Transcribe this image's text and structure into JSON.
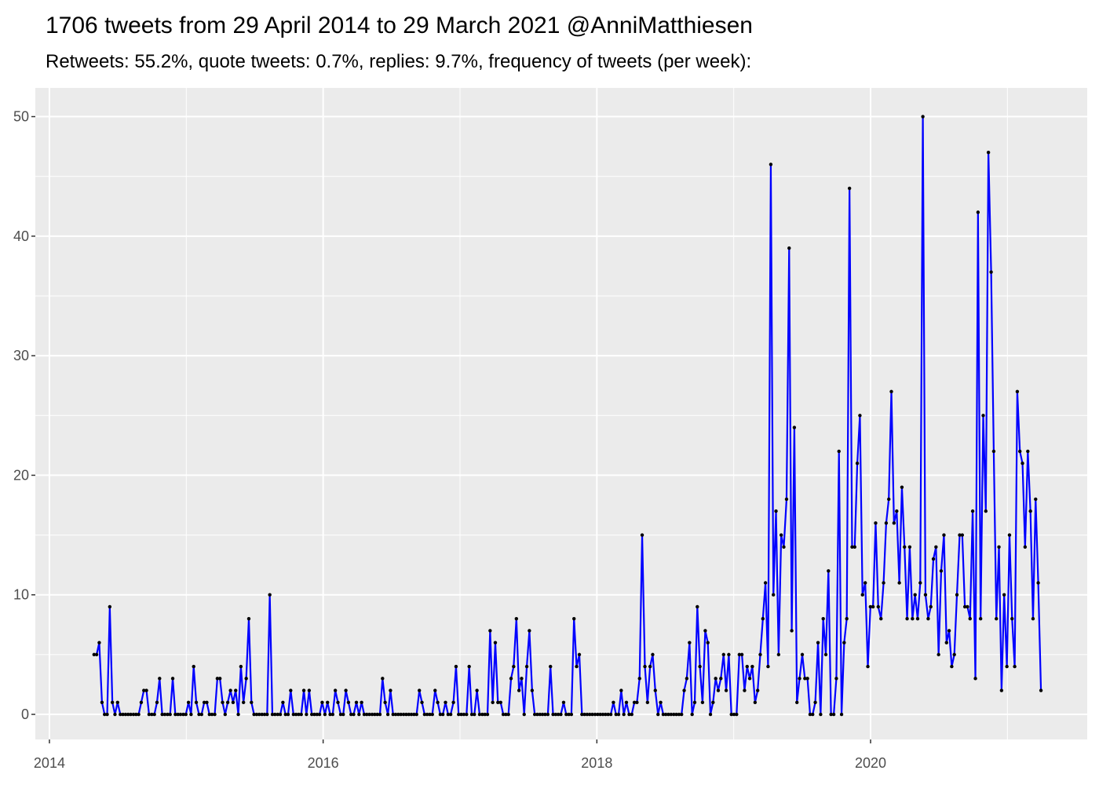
{
  "chart_data": {
    "type": "line",
    "title": "1706 tweets from 29 April 2014 to 29 March 2021 @AnniMatthiesen",
    "subtitle": "Retweets: 55.2%, quote tweets: 0.7%, replies: 9.7%, frequency of tweets (per week):",
    "x": [
      2014.326,
      2014.345,
      2014.364,
      2014.384,
      2014.403,
      2014.422,
      2014.441,
      2014.46,
      2014.479,
      2014.498,
      2014.518,
      2014.537,
      2014.556,
      2014.575,
      2014.594,
      2014.614,
      2014.633,
      2014.652,
      2014.671,
      2014.69,
      2014.709,
      2014.728,
      2014.748,
      2014.767,
      2014.786,
      2014.805,
      2014.824,
      2014.843,
      2014.863,
      2014.882,
      2014.901,
      2014.92,
      2014.939,
      2014.958,
      2014.978,
      2014.997,
      2015.016,
      2015.035,
      2015.054,
      2015.073,
      2015.093,
      2015.112,
      2015.131,
      2015.15,
      2015.169,
      2015.188,
      2015.208,
      2015.227,
      2015.246,
      2015.265,
      2015.284,
      2015.303,
      2015.323,
      2015.342,
      2015.361,
      2015.38,
      2015.399,
      2015.418,
      2015.438,
      2015.457,
      2015.476,
      2015.495,
      2015.514,
      2015.533,
      2015.553,
      2015.572,
      2015.591,
      2015.61,
      2015.629,
      2015.648,
      2015.668,
      2015.687,
      2015.706,
      2015.725,
      2015.744,
      2015.763,
      2015.783,
      2015.802,
      2015.821,
      2015.84,
      2015.859,
      2015.878,
      2015.898,
      2015.917,
      2015.936,
      2015.955,
      2015.974,
      2015.993,
      2016.013,
      2016.032,
      2016.051,
      2016.07,
      2016.089,
      2016.108,
      2016.128,
      2016.147,
      2016.166,
      2016.185,
      2016.204,
      2016.223,
      2016.243,
      2016.262,
      2016.281,
      2016.3,
      2016.319,
      2016.338,
      2016.358,
      2016.377,
      2016.396,
      2016.415,
      2016.434,
      2016.453,
      2016.473,
      2016.492,
      2016.511,
      2016.53,
      2016.549,
      2016.568,
      2016.588,
      2016.607,
      2016.626,
      2016.645,
      2016.664,
      2016.683,
      2016.703,
      2016.722,
      2016.741,
      2016.76,
      2016.779,
      2016.798,
      2016.818,
      2016.837,
      2016.856,
      2016.875,
      2016.894,
      2016.913,
      2016.932,
      2016.952,
      2016.971,
      2016.99,
      2017.009,
      2017.028,
      2017.048,
      2017.067,
      2017.086,
      2017.105,
      2017.124,
      2017.143,
      2017.163,
      2017.182,
      2017.201,
      2017.22,
      2017.239,
      2017.258,
      2017.277,
      2017.297,
      2017.316,
      2017.335,
      2017.354,
      2017.373,
      2017.392,
      2017.412,
      2017.431,
      2017.45,
      2017.469,
      2017.488,
      2017.507,
      2017.527,
      2017.546,
      2017.565,
      2017.584,
      2017.603,
      2017.622,
      2017.642,
      2017.661,
      2017.68,
      2017.699,
      2017.718,
      2017.737,
      2017.757,
      2017.776,
      2017.795,
      2017.814,
      2017.833,
      2017.852,
      2017.872,
      2017.891,
      2017.91,
      2017.929,
      2017.948,
      2017.967,
      2017.987,
      2018.006,
      2018.025,
      2018.044,
      2018.063,
      2018.082,
      2018.102,
      2018.121,
      2018.14,
      2018.159,
      2018.178,
      2018.197,
      2018.216,
      2018.236,
      2018.255,
      2018.274,
      2018.293,
      2018.312,
      2018.331,
      2018.351,
      2018.37,
      2018.389,
      2018.408,
      2018.427,
      2018.447,
      2018.466,
      2018.485,
      2018.504,
      2018.523,
      2018.542,
      2018.562,
      2018.581,
      2018.6,
      2018.619,
      2018.638,
      2018.657,
      2018.677,
      2018.696,
      2018.715,
      2018.734,
      2018.753,
      2018.772,
      2018.792,
      2018.811,
      2018.83,
      2018.849,
      2018.868,
      2018.887,
      2018.906,
      2018.926,
      2018.945,
      2018.964,
      2018.983,
      2019.002,
      2019.021,
      2019.041,
      2019.06,
      2019.079,
      2019.098,
      2019.117,
      2019.136,
      2019.156,
      2019.175,
      2019.194,
      2019.213,
      2019.232,
      2019.251,
      2019.271,
      2019.29,
      2019.309,
      2019.328,
      2019.347,
      2019.366,
      2019.386,
      2019.405,
      2019.424,
      2019.443,
      2019.462,
      2019.481,
      2019.501,
      2019.52,
      2019.539,
      2019.558,
      2019.577,
      2019.596,
      2019.616,
      2019.635,
      2019.654,
      2019.673,
      2019.692,
      2019.711,
      2019.731,
      2019.75,
      2019.769,
      2019.788,
      2019.807,
      2019.826,
      2019.846,
      2019.865,
      2019.884,
      2019.903,
      2019.922,
      2019.941,
      2019.961,
      2019.98,
      2019.999,
      2020.018,
      2020.037,
      2020.056,
      2020.076,
      2020.095,
      2020.114,
      2020.133,
      2020.152,
      2020.171,
      2020.191,
      2020.21,
      2020.229,
      2020.248,
      2020.267,
      2020.286,
      2020.306,
      2020.325,
      2020.344,
      2020.363,
      2020.382,
      2020.401,
      2020.421,
      2020.44,
      2020.459,
      2020.478,
      2020.497,
      2020.516,
      2020.536,
      2020.555,
      2020.574,
      2020.593,
      2020.612,
      2020.631,
      2020.651,
      2020.67,
      2020.689,
      2020.708,
      2020.727,
      2020.746,
      2020.766,
      2020.785,
      2020.804,
      2020.823,
      2020.842,
      2020.861,
      2020.881,
      2020.9,
      2020.919,
      2020.938,
      2020.957,
      2020.976,
      2020.996,
      2021.015,
      2021.034,
      2021.053,
      2021.072,
      2021.091,
      2021.11,
      2021.129,
      2021.149,
      2021.168,
      2021.187,
      2021.206,
      2021.225,
      2021.245
    ],
    "values": [
      5,
      5,
      6,
      1,
      0,
      0,
      9,
      1,
      0,
      1,
      0,
      0,
      0,
      0,
      0,
      0,
      0,
      0,
      1,
      2,
      2,
      0,
      0,
      0,
      1,
      3,
      0,
      0,
      0,
      0,
      3,
      0,
      0,
      0,
      0,
      0,
      1,
      0,
      4,
      1,
      0,
      0,
      1,
      1,
      0,
      0,
      0,
      3,
      3,
      1,
      0,
      1,
      2,
      1,
      2,
      0,
      4,
      1,
      3,
      8,
      1,
      0,
      0,
      0,
      0,
      0,
      0,
      10,
      0,
      0,
      0,
      0,
      1,
      0,
      0,
      2,
      0,
      0,
      0,
      0,
      2,
      0,
      2,
      0,
      0,
      0,
      0,
      1,
      0,
      1,
      0,
      0,
      2,
      1,
      0,
      0,
      2,
      1,
      0,
      0,
      1,
      0,
      1,
      0,
      0,
      0,
      0,
      0,
      0,
      0,
      3,
      1,
      0,
      2,
      0,
      0,
      0,
      0,
      0,
      0,
      0,
      0,
      0,
      0,
      2,
      1,
      0,
      0,
      0,
      0,
      2,
      1,
      0,
      0,
      1,
      0,
      0,
      1,
      4,
      0,
      0,
      0,
      0,
      4,
      0,
      0,
      2,
      0,
      0,
      0,
      0,
      7,
      1,
      6,
      1,
      1,
      0,
      0,
      0,
      3,
      4,
      8,
      2,
      3,
      0,
      4,
      7,
      2,
      0,
      0,
      0,
      0,
      0,
      0,
      4,
      0,
      0,
      0,
      0,
      1,
      0,
      0,
      0,
      8,
      4,
      5,
      0,
      0,
      0,
      0,
      0,
      0,
      0,
      0,
      0,
      0,
      0,
      0,
      1,
      0,
      0,
      2,
      0,
      1,
      0,
      0,
      1,
      1,
      3,
      15,
      4,
      1,
      4,
      5,
      2,
      0,
      1,
      0,
      0,
      0,
      0,
      0,
      0,
      0,
      0,
      2,
      3,
      6,
      0,
      1,
      9,
      4,
      1,
      7,
      6,
      0,
      1,
      3,
      2,
      3,
      5,
      2,
      5,
      0,
      0,
      0,
      5,
      5,
      2,
      4,
      3,
      4,
      1,
      2,
      5,
      8,
      11,
      4,
      46,
      10,
      17,
      5,
      15,
      14,
      18,
      39,
      7,
      24,
      1,
      3,
      5,
      3,
      3,
      0,
      0,
      1,
      6,
      0,
      8,
      5,
      12,
      0,
      0,
      3,
      22,
      0,
      6,
      8,
      44,
      14,
      14,
      21,
      25,
      10,
      11,
      4,
      9,
      9,
      16,
      9,
      8,
      11,
      16,
      18,
      27,
      16,
      17,
      11,
      19,
      14,
      8,
      14,
      8,
      10,
      8,
      11,
      50,
      10,
      8,
      9,
      13,
      14,
      5,
      12,
      15,
      6,
      7,
      4,
      5,
      10,
      15,
      15,
      9,
      9,
      8,
      17,
      3,
      42,
      8,
      25,
      17,
      47,
      37,
      22,
      8,
      14,
      2,
      10,
      4,
      15,
      8,
      4,
      27,
      22,
      21,
      14,
      22,
      17,
      8,
      18,
      11,
      2
    ],
    "color": "#0000ff",
    "point_color": "#000000",
    "xlim": [
      2013.897,
      2021.583
    ],
    "xticks": [
      2014,
      2016,
      2018,
      2020
    ],
    "ylim": [
      -2.1,
      52.4
    ],
    "yticks": [
      0,
      10,
      20,
      30,
      40,
      50
    ],
    "grid": true
  }
}
